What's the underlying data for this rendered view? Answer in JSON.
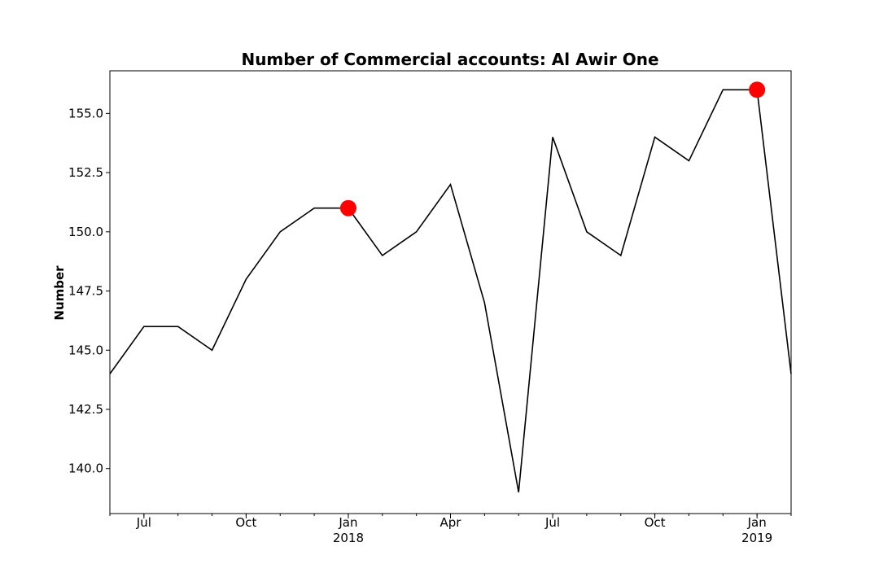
{
  "chart_data": {
    "type": "line",
    "title": "Number of Commercial accounts: Al Awir One",
    "ylabel": "Number",
    "x": [
      "2017-06",
      "2017-07",
      "2017-08",
      "2017-09",
      "2017-10",
      "2017-11",
      "2017-12",
      "2018-01",
      "2018-02",
      "2018-03",
      "2018-04",
      "2018-05",
      "2018-06",
      "2018-07",
      "2018-08",
      "2018-09",
      "2018-10",
      "2018-11",
      "2018-12",
      "2019-01",
      "2019-02"
    ],
    "series": [
      {
        "name": "Number",
        "color": "#000000",
        "values": [
          144,
          146,
          146,
          145,
          148,
          150,
          151,
          151,
          149,
          150,
          152,
          147,
          139,
          154,
          150,
          149,
          154,
          153,
          156,
          156,
          144
        ]
      }
    ],
    "markers": {
      "color": "#ff0000",
      "x": [
        "2018-01",
        "2019-01"
      ],
      "values": [
        151,
        156
      ]
    },
    "ylim": [
      138.1,
      156.8
    ],
    "yticks": [
      {
        "value": 140,
        "label": "140.0"
      },
      {
        "value": 142.5,
        "label": "142.5"
      },
      {
        "value": 145,
        "label": "145.0"
      },
      {
        "value": 147.5,
        "label": "147.5"
      },
      {
        "value": 150,
        "label": "150.0"
      },
      {
        "value": 152.5,
        "label": "152.5"
      },
      {
        "value": 155,
        "label": "155.0"
      }
    ],
    "xticks": [
      {
        "value": "2017-07",
        "label": "Jul"
      },
      {
        "value": "2017-10",
        "label": "Oct"
      },
      {
        "value": "2018-01",
        "label": "Jan"
      },
      {
        "value": "2018-04",
        "label": "Apr"
      },
      {
        "value": "2018-07",
        "label": "Jul"
      },
      {
        "value": "2018-10",
        "label": "Oct"
      },
      {
        "value": "2019-01",
        "label": "Jan"
      }
    ],
    "xtick_years": [
      {
        "value": "2018-01",
        "label": "2018"
      },
      {
        "value": "2019-01",
        "label": "2019"
      }
    ],
    "grid": false
  }
}
